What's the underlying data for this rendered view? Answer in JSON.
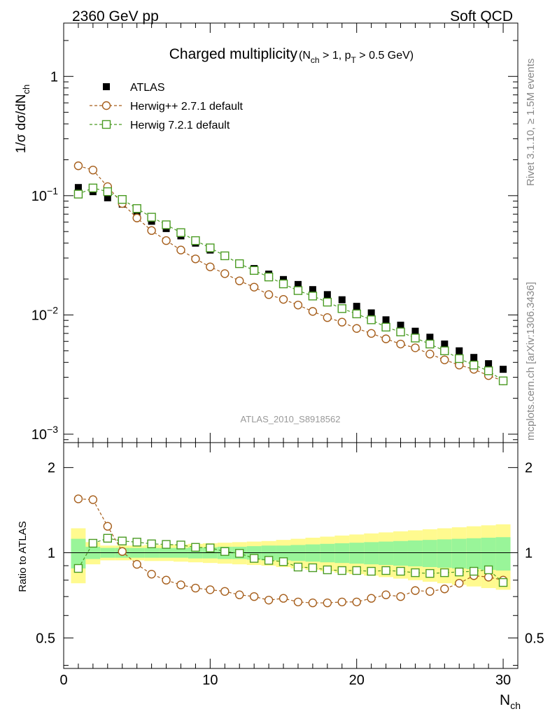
{
  "chart_data": {
    "type": "line",
    "header_left": "2360 GeV pp",
    "header_right": "Soft QCD",
    "title": "Charged multiplicity",
    "title_condition": "(N_ch > 1, p_T > 0.5 GeV)",
    "ylabel": "1/σ dσ/dN_ch",
    "ylabel_ratio": "Ratio to ATLAS",
    "xlabel": "N_ch",
    "watermark": "ATLAS_2010_S8918562",
    "side_label_top": "Rivet 3.1.10, ≥ 1.5M events",
    "side_label_bottom": "mcplots.cern.ch [arXiv:1306.3436]",
    "xlim": [
      0,
      31
    ],
    "ylim": [
      0.00085,
      2.8
    ],
    "ratio_ylim": [
      0.39,
      2.45
    ],
    "x_ticks": [
      "0",
      "10",
      "20",
      "30"
    ],
    "y_ticks": [
      "1",
      "10^-1",
      "10^-2",
      "10^-3"
    ],
    "ratio_ticks": [
      "0.5",
      "1",
      "2"
    ],
    "x": [
      1,
      2,
      3,
      4,
      5,
      6,
      7,
      8,
      9,
      10,
      11,
      12,
      13,
      14,
      15,
      16,
      17,
      18,
      19,
      20,
      21,
      22,
      23,
      24,
      25,
      26,
      27,
      28,
      29,
      30
    ],
    "series": [
      {
        "name": "ATLAS",
        "style": "data",
        "color": "#000000",
        "values": [
          0.117,
          0.108,
          0.096,
          0.085,
          0.071,
          0.061,
          0.053,
          0.046,
          0.04,
          0.035,
          0.031,
          0.027,
          0.0245,
          0.022,
          0.0198,
          0.018,
          0.0163,
          0.0148,
          0.0134,
          0.0118,
          0.0104,
          0.0091,
          0.0082,
          0.0073,
          0.0065,
          0.0057,
          0.005,
          0.0044,
          0.0039,
          0.0035
        ]
      },
      {
        "name": "Herwig++ 2.7.1 default",
        "style": "circle",
        "color": "#a65e1b",
        "values": [
          0.178,
          0.164,
          0.119,
          0.086,
          0.065,
          0.051,
          0.042,
          0.035,
          0.0295,
          0.0253,
          0.0222,
          0.0193,
          0.0171,
          0.0148,
          0.0135,
          0.0121,
          0.0107,
          0.0095,
          0.0087,
          0.0077,
          0.007,
          0.0063,
          0.0057,
          0.0053,
          0.0047,
          0.0042,
          0.0038,
          0.0035,
          0.0031,
          0.0028
        ]
      },
      {
        "name": "Herwig 7.2.1 default",
        "style": "square",
        "color": "#4a9b23",
        "values": [
          0.103,
          0.116,
          0.108,
          0.093,
          0.078,
          0.066,
          0.057,
          0.049,
          0.042,
          0.0365,
          0.0313,
          0.0269,
          0.0236,
          0.0208,
          0.0182,
          0.016,
          0.0144,
          0.0128,
          0.0113,
          0.0102,
          0.0091,
          0.0079,
          0.0072,
          0.0064,
          0.0057,
          0.005,
          0.0043,
          0.0038,
          0.0034,
          0.0028
        ]
      }
    ],
    "ratios": [
      {
        "name": "Herwig++ 2.7.1 default",
        "values": [
          1.55,
          1.54,
          1.24,
          1.01,
          0.91,
          0.84,
          0.8,
          0.77,
          0.75,
          0.74,
          0.73,
          0.71,
          0.7,
          0.68,
          0.69,
          0.67,
          0.665,
          0.665,
          0.67,
          0.67,
          0.69,
          0.71,
          0.7,
          0.735,
          0.73,
          0.745,
          0.78,
          0.83,
          0.82,
          0.8
        ]
      },
      {
        "name": "Herwig 7.2.1 default",
        "values": [
          0.88,
          1.08,
          1.125,
          1.1,
          1.09,
          1.075,
          1.07,
          1.065,
          1.045,
          1.04,
          1.01,
          0.995,
          0.955,
          0.94,
          0.93,
          0.89,
          0.885,
          0.87,
          0.865,
          0.865,
          0.86,
          0.865,
          0.86,
          0.85,
          0.845,
          0.85,
          0.855,
          0.86,
          0.87,
          0.785
        ]
      }
    ],
    "uncertainty_bands": {
      "inner_color": "#99f599",
      "outer_color": "#fffa8f",
      "stat_halfwidth": [
        0.12,
        0.05,
        0.04,
        0.04,
        0.04,
        0.04,
        0.04,
        0.04,
        0.045,
        0.045,
        0.05,
        0.05,
        0.055,
        0.06,
        0.06,
        0.065,
        0.07,
        0.075,
        0.08,
        0.085,
        0.09,
        0.095,
        0.1,
        0.105,
        0.11,
        0.115,
        0.12,
        0.125,
        0.13,
        0.135
      ],
      "total_halfwidth": [
        0.22,
        0.09,
        0.06,
        0.06,
        0.06,
        0.065,
        0.065,
        0.07,
        0.075,
        0.08,
        0.085,
        0.09,
        0.095,
        0.1,
        0.11,
        0.12,
        0.13,
        0.14,
        0.15,
        0.16,
        0.17,
        0.18,
        0.19,
        0.2,
        0.21,
        0.22,
        0.23,
        0.24,
        0.25,
        0.26
      ]
    },
    "legend_position": "top-left"
  }
}
